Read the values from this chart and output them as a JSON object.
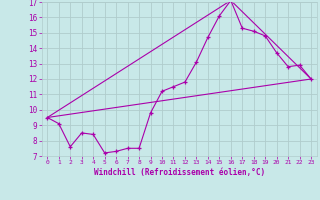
{
  "xlabel": "Windchill (Refroidissement éolien,°C)",
  "xlim": [
    -0.5,
    23.5
  ],
  "ylim": [
    7,
    17
  ],
  "xticks": [
    0,
    1,
    2,
    3,
    4,
    5,
    6,
    7,
    8,
    9,
    10,
    11,
    12,
    13,
    14,
    15,
    16,
    17,
    18,
    19,
    20,
    21,
    22,
    23
  ],
  "yticks": [
    7,
    8,
    9,
    10,
    11,
    12,
    13,
    14,
    15,
    16,
    17
  ],
  "bg_color": "#c8e8e8",
  "grid_color": "#b0cccc",
  "line_color": "#aa00aa",
  "tick_color": "#aa00aa",
  "line1_x": [
    0,
    1,
    2,
    3,
    4,
    5,
    6,
    7,
    8,
    9,
    10,
    11,
    12,
    13,
    14,
    15,
    16,
    17,
    18,
    19,
    20,
    21,
    22,
    23
  ],
  "line1_y": [
    9.5,
    9.1,
    7.6,
    8.5,
    8.4,
    7.2,
    7.3,
    7.5,
    7.5,
    9.8,
    11.2,
    11.5,
    11.8,
    13.1,
    14.7,
    16.1,
    17.1,
    15.3,
    15.1,
    14.8,
    13.7,
    12.8,
    12.9,
    12.0
  ],
  "line2_x": [
    0,
    23
  ],
  "line2_y": [
    9.5,
    12.0
  ],
  "line3_x": [
    0,
    16,
    23
  ],
  "line3_y": [
    9.5,
    17.1,
    12.0
  ]
}
